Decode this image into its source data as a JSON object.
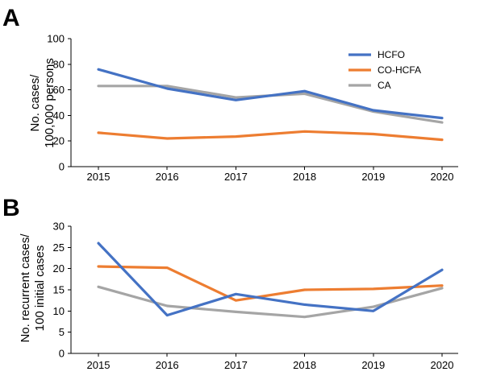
{
  "chart_data": [
    {
      "panel": "A",
      "type": "line",
      "x": [
        2015,
        2016,
        2017,
        2018,
        2019,
        2020
      ],
      "ylabel": [
        "No. cases/",
        "100,000 persons"
      ],
      "ylim": [
        0,
        100
      ],
      "yticks": [
        0,
        20,
        40,
        60,
        80,
        100
      ],
      "legend": {
        "position": "top-right"
      },
      "series": [
        {
          "name": "HCFO",
          "color": "#4472C4",
          "values": [
            76,
            61,
            52,
            59,
            44,
            38
          ]
        },
        {
          "name": "CO-HCFA",
          "color": "#ED7D31",
          "values": [
            26.5,
            22,
            23.5,
            27.5,
            25.5,
            21
          ]
        },
        {
          "name": "CA",
          "color": "#A5A5A5",
          "values": [
            63,
            63,
            54,
            57,
            43,
            34.5
          ]
        }
      ]
    },
    {
      "panel": "B",
      "type": "line",
      "x": [
        2015,
        2016,
        2017,
        2018,
        2019,
        2020
      ],
      "ylabel": [
        "No. recurrent cases/",
        "100 initial cases"
      ],
      "ylim": [
        0,
        30
      ],
      "yticks": [
        0,
        5,
        10,
        15,
        20,
        25,
        30
      ],
      "series": [
        {
          "name": "HCFO",
          "color": "#4472C4",
          "values": [
            26,
            9,
            14,
            11.5,
            10,
            19.7
          ]
        },
        {
          "name": "CO-HCFA",
          "color": "#ED7D31",
          "values": [
            20.5,
            20.2,
            12.5,
            15,
            15.2,
            16
          ]
        },
        {
          "name": "CA",
          "color": "#A5A5A5",
          "values": [
            15.7,
            11.2,
            9.8,
            8.6,
            11,
            15.4
          ]
        }
      ]
    }
  ]
}
